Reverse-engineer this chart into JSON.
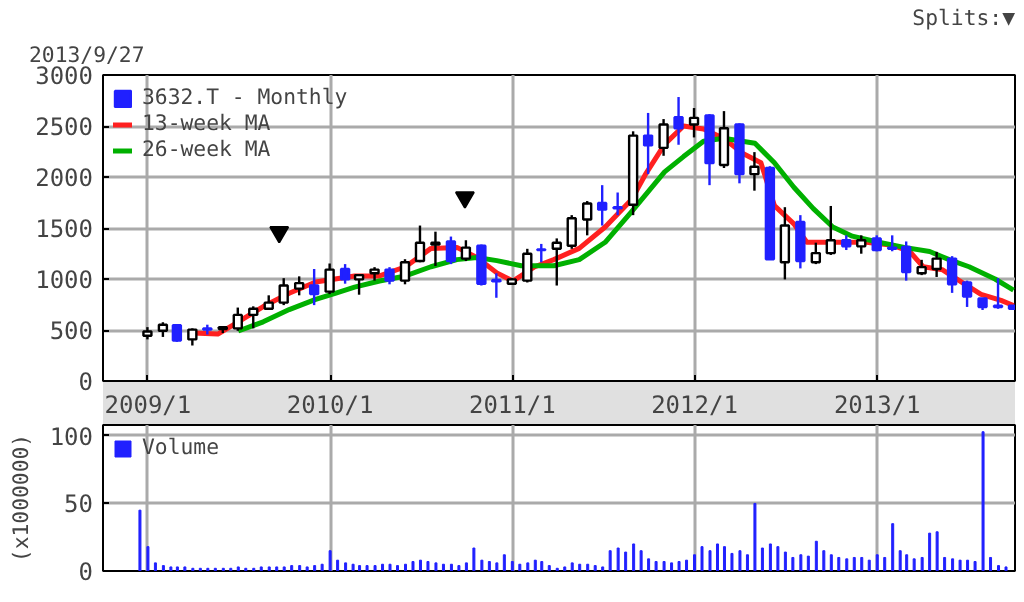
{
  "chart_data": [
    {
      "type": "candlestick",
      "subtitle": "2013/9/27",
      "annotations": [
        "Splits:▼"
      ],
      "x": [
        "2008-12-31",
        "2009-01-31",
        "2009-02-28",
        "2009-03-31",
        "2009-04-30",
        "2009-05-31",
        "2009-06-30",
        "2009-07-31",
        "2009-08-31",
        "2009-09-30",
        "2009-10-31",
        "2009-11-30",
        "2009-12-31",
        "2010-01-31",
        "2010-02-28",
        "2010-03-31",
        "2010-04-30",
        "2010-05-31",
        "2010-06-30",
        "2010-07-31",
        "2010-08-31",
        "2010-09-30",
        "2010-10-31",
        "2010-11-30",
        "2010-12-31",
        "2011-01-31",
        "2011-02-28",
        "2011-03-31",
        "2011-04-30",
        "2011-05-31",
        "2011-06-30",
        "2011-07-31",
        "2011-08-31",
        "2011-09-30",
        "2011-10-31",
        "2011-11-30",
        "2011-12-31",
        "2012-01-31",
        "2012-02-29",
        "2012-03-31",
        "2012-04-30",
        "2012-05-31",
        "2012-06-30",
        "2012-07-31",
        "2012-08-31",
        "2012-09-30",
        "2012-10-31",
        "2012-11-30",
        "2012-12-31",
        "2013-01-31",
        "2013-02-28",
        "2013-03-31",
        "2013-04-30",
        "2013-05-31",
        "2013-06-30",
        "2013-07-31",
        "2013-08-31",
        "2013-09-30"
      ],
      "xlim": [
        "2008-10-03",
        "2013-10-04"
      ],
      "xticks": [
        {
          "value": "2009-01-01",
          "label": "2009/1"
        },
        {
          "value": "2010-01-01",
          "label": "2010/1"
        },
        {
          "value": "2011-01-01",
          "label": "2011/1"
        },
        {
          "value": "2012-01-01",
          "label": "2012/1"
        },
        {
          "value": "2013-01-01",
          "label": "2013/1"
        }
      ],
      "ylim": [
        0,
        3000
      ],
      "yticks": [
        0,
        500,
        1000,
        1500,
        2000,
        2500,
        3000
      ],
      "grid": true,
      "legend": "top left",
      "series": [
        {
          "type": "candlestick",
          "name": "3632.T - Monthly",
          "color": "#2020ff",
          "colors": [
            "#ffffff",
            "#ffffff",
            "#2020ff",
            "#ffffff",
            "#2020ff",
            "#ffffff",
            "#ffffff",
            "#ffffff",
            "#ffffff",
            "#ffffff",
            "#ffffff",
            "#2020ff",
            "#ffffff",
            "#2020ff",
            "#ffffff",
            "#ffffff",
            "#2020ff",
            "#ffffff",
            "#ffffff",
            "#ffffff",
            "#2020ff",
            "#ffffff",
            "#2020ff",
            "#2020ff",
            "#ffffff",
            "#ffffff",
            "#2020ff",
            "#ffffff",
            "#ffffff",
            "#ffffff",
            "#2020ff",
            "#2020ff",
            "#ffffff",
            "#2020ff",
            "#ffffff",
            "#2020ff",
            "#ffffff",
            "#2020ff",
            "#ffffff",
            "#2020ff",
            "#ffffff",
            "#2020ff",
            "#ffffff",
            "#2020ff",
            "#ffffff",
            "#ffffff",
            "#2020ff",
            "#ffffff",
            "#2020ff",
            "#2020ff",
            "#2020ff",
            "#ffffff",
            "#ffffff",
            "#2020ff",
            "#2020ff",
            "#2020ff",
            "#2020ff",
            "#2020ff"
          ],
          "ohlc": [
            [
              444,
              528,
              408,
              486
            ],
            [
              492,
              576,
              432,
              552
            ],
            [
              546,
              558,
              384,
              396
            ],
            [
              408,
              516,
              348,
              504
            ],
            [
              516,
              552,
              456,
              504
            ],
            [
              510,
              530,
              470,
              528
            ],
            [
              516,
              720,
              492,
              648
            ],
            [
              648,
              732,
              516,
              708
            ],
            [
              708,
              840,
              696,
              768
            ],
            [
              768,
              1008,
              744,
              936
            ],
            [
              906,
              1026,
              840,
              960
            ],
            [
              936,
              1098,
              744,
              852
            ],
            [
              876,
              1152,
              852,
              1092
            ],
            [
              1098,
              1146,
              954,
              996
            ],
            [
              996,
              1038,
              846,
              1038
            ],
            [
              1056,
              1116,
              984,
              1092
            ],
            [
              1092,
              1116,
              948,
              984
            ],
            [
              984,
              1194,
              948,
              1164
            ],
            [
              1176,
              1524,
              1164,
              1356
            ],
            [
              1338,
              1464,
              1128,
              1356
            ],
            [
              1368,
              1416,
              1146,
              1176
            ],
            [
              1200,
              1380,
              1176,
              1308
            ],
            [
              1326,
              1338,
              936,
              954
            ],
            [
              990,
              1056,
              816,
              978
            ],
            [
              954,
              1008,
              948,
              996
            ],
            [
              984,
              1296,
              966,
              1248
            ],
            [
              1290,
              1344,
              1164,
              1284
            ],
            [
              1296,
              1398,
              936,
              1356
            ],
            [
              1326,
              1626,
              1296,
              1596
            ],
            [
              1584,
              1764,
              1428,
              1740
            ],
            [
              1746,
              1920,
              1524,
              1680
            ],
            [
              1704,
              1848,
              1626,
              1692
            ],
            [
              1728,
              2448,
              1626,
              2406
            ],
            [
              2406,
              2628,
              2028,
              2310
            ],
            [
              2286,
              2568,
              2208,
              2514
            ],
            [
              2586,
              2784,
              2316,
              2478
            ],
            [
              2514,
              2676,
              2388,
              2580
            ],
            [
              2604,
              2616,
              1920,
              2136
            ],
            [
              2118,
              2646,
              2088,
              2478
            ],
            [
              2514,
              2526,
              1938,
              2028
            ],
            [
              2028,
              2244,
              1866,
              2100
            ],
            [
              2088,
              2106,
              1194,
              1194
            ],
            [
              1164,
              1704,
              996,
              1524
            ],
            [
              1560,
              1626,
              1104,
              1176
            ],
            [
              1164,
              1356,
              1146,
              1254
            ],
            [
              1254,
              1716,
              1236,
              1380
            ],
            [
              1380,
              1428,
              1284,
              1320
            ],
            [
              1320,
              1428,
              1248,
              1380
            ],
            [
              1398,
              1428,
              1272,
              1284
            ],
            [
              1308,
              1428,
              1272,
              1296
            ],
            [
              1314,
              1368,
              984,
              1068
            ],
            [
              1056,
              1188,
              1038,
              1116
            ],
            [
              1098,
              1266,
              1020,
              1200
            ],
            [
              1200,
              1224,
              864,
              948
            ],
            [
              966,
              984,
              726,
              828
            ],
            [
              810,
              810,
              696,
              726
            ],
            [
              738,
              1008,
              708,
              726
            ],
            [
              738,
              744,
              702,
              708
            ]
          ]
        },
        {
          "type": "line",
          "name": "13-week MA",
          "color": "#ff2020",
          "x": [
            "2009-04-01",
            "2009-05-21",
            "2009-07-01",
            "2009-08-20",
            "2009-10-11",
            "2009-12-03",
            "2010-01-11",
            "2010-02-19",
            "2010-04-10",
            "2010-06-01",
            "2010-07-22",
            "2010-09-12",
            "2010-10-22",
            "2010-12-01",
            "2011-01-02",
            "2011-02-15",
            "2011-03-25",
            "2011-05-15",
            "2011-07-06",
            "2011-08-28",
            "2011-09-24",
            "2011-11-02",
            "2011-12-10",
            "2012-01-19",
            "2012-02-28",
            "2012-04-07",
            "2012-05-13",
            "2012-06-09",
            "2012-07-18",
            "2012-08-13",
            "2012-10-19",
            "2012-12-10",
            "2013-02-01",
            "2013-03-07",
            "2013-04-03",
            "2013-05-12",
            "2013-06-19",
            "2013-07-28",
            "2013-09-06",
            "2013-10-01"
          ],
          "values": [
            470,
            460,
            580,
            730,
            860,
            970,
            1000,
            1030,
            1030,
            1120,
            1300,
            1310,
            1210,
            1060,
            980,
            1120,
            1190,
            1300,
            1510,
            1780,
            2020,
            2320,
            2500,
            2470,
            2380,
            2230,
            2140,
            1720,
            1540,
            1360,
            1360,
            1360,
            1330,
            1270,
            1120,
            1090,
            970,
            850,
            790,
            740
          ]
        },
        {
          "type": "line",
          "name": "26-week MA",
          "color": "#00b000",
          "x": [
            "2009-07-01",
            "2009-08-20",
            "2009-10-11",
            "2009-12-03",
            "2010-01-11",
            "2010-02-19",
            "2010-04-10",
            "2010-06-01",
            "2010-07-22",
            "2010-09-12",
            "2010-10-22",
            "2010-12-01",
            "2011-01-19",
            "2011-03-25",
            "2011-05-15",
            "2011-07-06",
            "2011-08-28",
            "2011-11-02",
            "2011-12-10",
            "2012-01-19",
            "2012-02-28",
            "2012-05-01",
            "2012-06-09",
            "2012-07-18",
            "2012-08-26",
            "2012-10-04",
            "2012-11-12",
            "2013-01-04",
            "2013-02-24",
            "2013-04-16",
            "2013-05-25",
            "2013-07-04",
            "2013-08-25",
            "2013-10-01"
          ],
          "values": [
            490,
            580,
            700,
            800,
            860,
            920,
            980,
            1030,
            1120,
            1190,
            1210,
            1180,
            1130,
            1130,
            1190,
            1360,
            1660,
            2050,
            2200,
            2350,
            2380,
            2330,
            2140,
            1900,
            1690,
            1510,
            1420,
            1360,
            1310,
            1270,
            1190,
            1120,
            1000,
            890
          ]
        },
        {
          "type": "scatter",
          "color": "#000000",
          "marker": "triangle",
          "x": [
            "2009-09-21",
            "2010-09-28"
          ],
          "values": [
            1460,
            1800
          ]
        }
      ]
    },
    {
      "type": "bar",
      "ylabel": "(x1000000)",
      "x": [
        "2008-12-16",
        "2009-01-01",
        "2009-01-16",
        "2009-02-01",
        "2009-02-16",
        "2009-03-01",
        "2009-03-16",
        "2009-04-01",
        "2009-04-16",
        "2009-05-01",
        "2009-05-16",
        "2009-06-01",
        "2009-06-16",
        "2009-07-01",
        "2009-07-16",
        "2009-08-01",
        "2009-08-16",
        "2009-09-01",
        "2009-09-16",
        "2009-10-01",
        "2009-10-16",
        "2009-11-01",
        "2009-11-16",
        "2009-12-01",
        "2009-12-16",
        "2010-01-01",
        "2010-01-16",
        "2010-02-01",
        "2010-02-16",
        "2010-03-01",
        "2010-03-16",
        "2010-04-01",
        "2010-04-16",
        "2010-05-01",
        "2010-05-16",
        "2010-06-01",
        "2010-06-16",
        "2010-07-01",
        "2010-07-16",
        "2010-08-01",
        "2010-08-16",
        "2010-09-01",
        "2010-09-16",
        "2010-10-01",
        "2010-10-16",
        "2010-11-01",
        "2010-11-16",
        "2010-12-01",
        "2010-12-16",
        "2011-01-01",
        "2011-01-16",
        "2011-02-01",
        "2011-02-16",
        "2011-03-01",
        "2011-03-16",
        "2011-04-01",
        "2011-04-16",
        "2011-05-01",
        "2011-05-16",
        "2011-06-01",
        "2011-06-16",
        "2011-07-01",
        "2011-07-16",
        "2011-08-01",
        "2011-08-16",
        "2011-09-01",
        "2011-09-16",
        "2011-10-01",
        "2011-10-16",
        "2011-11-01",
        "2011-11-16",
        "2011-12-01",
        "2011-12-16",
        "2012-01-01",
        "2012-01-16",
        "2012-02-01",
        "2012-02-16",
        "2012-03-01",
        "2012-03-16",
        "2012-04-01",
        "2012-04-16",
        "2012-05-01",
        "2012-05-16",
        "2012-06-01",
        "2012-06-16",
        "2012-07-01",
        "2012-07-16",
        "2012-08-01",
        "2012-08-16",
        "2012-09-01",
        "2012-09-16",
        "2012-10-01",
        "2012-10-16",
        "2012-11-01",
        "2012-11-16",
        "2012-12-01",
        "2012-12-16",
        "2013-01-01",
        "2013-01-16",
        "2013-02-01",
        "2013-02-16",
        "2013-03-01",
        "2013-03-16",
        "2013-04-01",
        "2013-04-16",
        "2013-05-01",
        "2013-05-16",
        "2013-06-01",
        "2013-06-16",
        "2013-07-01",
        "2013-07-16",
        "2013-08-01",
        "2013-08-16",
        "2013-09-01",
        "2013-09-16"
      ],
      "xlim": [
        "2008-10-03",
        "2013-10-04"
      ],
      "xticks": [
        {
          "value": "2009-01-01",
          "label": null
        },
        {
          "value": "2010-01-01",
          "label": null
        },
        {
          "value": "2011-01-01",
          "label": null
        },
        {
          "value": "2012-01-01",
          "label": null
        },
        {
          "value": "2013-01-01",
          "label": null
        }
      ],
      "ylim": [
        0,
        108
      ],
      "yticks": [
        0,
        50,
        100
      ],
      "grid": true,
      "legend": "top left",
      "tick_labels": "y",
      "series": [
        {
          "name": "Volume",
          "color": "#2020ff",
          "values": [
            45,
            18,
            6,
            4,
            3,
            3,
            3,
            2,
            2,
            2,
            2,
            2,
            2,
            3,
            2,
            2,
            3,
            3,
            3,
            3,
            4,
            4,
            3,
            4,
            5,
            15,
            8,
            6,
            5,
            4,
            4,
            4,
            5,
            5,
            4,
            5,
            7,
            8,
            7,
            6,
            5,
            5,
            4,
            6,
            17,
            8,
            7,
            6,
            12,
            7,
            5,
            6,
            8,
            7,
            4,
            2,
            3,
            6,
            5,
            5,
            4,
            3,
            15,
            17,
            14,
            20,
            15,
            9,
            7,
            7,
            6,
            7,
            8,
            12,
            18,
            15,
            20,
            18,
            13,
            15,
            12,
            50,
            17,
            20,
            18,
            14,
            10,
            12,
            11,
            22,
            15,
            12,
            10,
            9,
            10,
            10,
            8,
            12,
            10,
            35,
            15,
            12,
            9,
            10,
            28,
            29,
            10,
            9,
            8,
            8,
            7,
            103,
            10,
            4,
            3
          ]
        }
      ]
    }
  ]
}
